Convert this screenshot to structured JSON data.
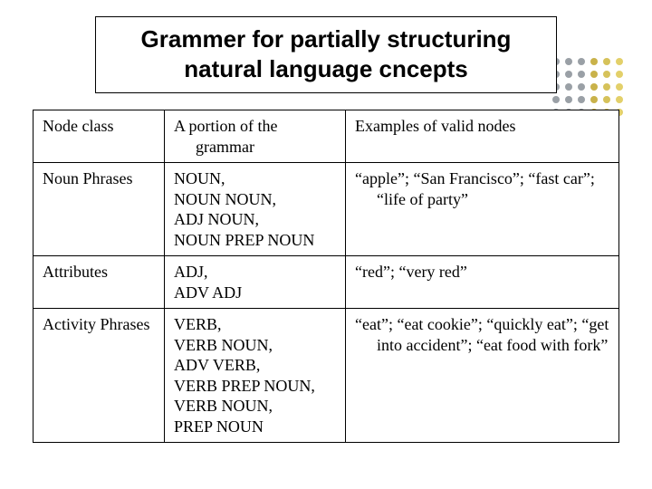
{
  "title": "Grammer for partially structuring natural language cncepts",
  "dot_colors": [
    "#9aa0a6",
    "#c9b24a",
    "#d6c25a",
    "#e3d06a"
  ],
  "table": {
    "columns": [
      "Node class",
      "A portion of the grammar",
      "Examples of valid nodes"
    ],
    "col2_indent": "A portion of the\n    grammar",
    "rows": [
      {
        "node_class": "Noun Phrases",
        "grammar": "NOUN,\nNOUN NOUN,\nADJ NOUN,\nNOUN PREP NOUN",
        "examples": "“apple”; “San Francisco”; “fast car”; “life of party”"
      },
      {
        "node_class": "Attributes",
        "grammar": "ADJ,\nADV ADJ",
        "examples": "“red”; “very red”"
      },
      {
        "node_class": "Activity Phrases",
        "grammar": "VERB,\nVERB NOUN,\nADV VERB,\nVERB PREP NOUN,\nVERB NOUN,\nPREP NOUN",
        "examples": "“eat”; “eat cookie”; “quickly eat”; “get into accident”; “eat food with fork”"
      }
    ]
  }
}
